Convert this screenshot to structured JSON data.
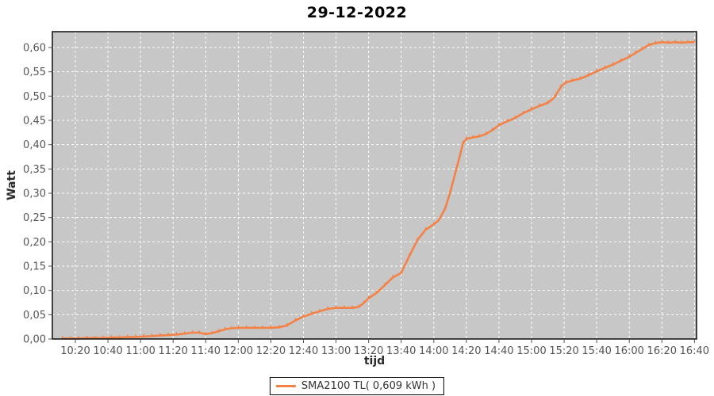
{
  "colors": {
    "background": "#ffffff",
    "plot_bg": "#c7c7c7",
    "grid": "#ffffff",
    "series": "#f48246",
    "border": "#1a1a1a",
    "tick_mark": "#555555",
    "tick_text": "#555555",
    "axis_text": "#2b2b2b"
  },
  "chart_data": {
    "type": "line",
    "title": "29-12-2022",
    "xlabel": "tijd",
    "ylabel": "Watt",
    "grid": "white dashed gridlines on gray plot background",
    "legend": {
      "label": "SMA2100 TL( 0,609 kWh )",
      "position": "bottom-center"
    },
    "x_ticks": [
      "10:20",
      "10:40",
      "11:00",
      "11:20",
      "11:40",
      "12:00",
      "12:20",
      "12:40",
      "13:00",
      "13:20",
      "13:40",
      "14:00",
      "14:20",
      "14:40",
      "15:00",
      "15:20",
      "15:40",
      "16:00",
      "16:20",
      "16:40"
    ],
    "y_ticks": [
      "0,00",
      "0,05",
      "0,10",
      "0,15",
      "0,20",
      "0,25",
      "0,30",
      "0,35",
      "0,40",
      "0,45",
      "0,50",
      "0,55",
      "0,60"
    ],
    "ylim": [
      0,
      0.632
    ],
    "xlim": [
      "10:06",
      "16:41"
    ],
    "series": [
      {
        "name": "SMA2100 TL( 0,609 kWh )",
        "color": "#f48246",
        "points": [
          [
            "10:12",
            0.001
          ],
          [
            "10:17",
            0.001
          ],
          [
            "10:22",
            0.001
          ],
          [
            "10:27",
            0.002
          ],
          [
            "10:32",
            0.002
          ],
          [
            "10:37",
            0.002
          ],
          [
            "10:42",
            0.003
          ],
          [
            "10:47",
            0.003
          ],
          [
            "10:52",
            0.004
          ],
          [
            "10:57",
            0.004
          ],
          [
            "11:02",
            0.005
          ],
          [
            "11:07",
            0.006
          ],
          [
            "11:12",
            0.007
          ],
          [
            "11:17",
            0.008
          ],
          [
            "11:22",
            0.009
          ],
          [
            "11:27",
            0.011
          ],
          [
            "11:32",
            0.013
          ],
          [
            "11:36",
            0.013
          ],
          [
            "11:40",
            0.01
          ],
          [
            "11:44",
            0.012
          ],
          [
            "11:48",
            0.016
          ],
          [
            "11:52",
            0.02
          ],
          [
            "11:56",
            0.022
          ],
          [
            "12:00",
            0.023
          ],
          [
            "12:05",
            0.023
          ],
          [
            "12:10",
            0.023
          ],
          [
            "12:15",
            0.023
          ],
          [
            "12:20",
            0.023
          ],
          [
            "12:25",
            0.024
          ],
          [
            "12:30",
            0.028
          ],
          [
            "12:35",
            0.038
          ],
          [
            "12:40",
            0.046
          ],
          [
            "12:45",
            0.052
          ],
          [
            "12:50",
            0.057
          ],
          [
            "12:55",
            0.062
          ],
          [
            "13:00",
            0.064
          ],
          [
            "13:05",
            0.064
          ],
          [
            "13:10",
            0.064
          ],
          [
            "13:14",
            0.066
          ],
          [
            "13:17",
            0.074
          ],
          [
            "13:20",
            0.084
          ],
          [
            "13:25",
            0.095
          ],
          [
            "13:30",
            0.111
          ],
          [
            "13:35",
            0.127
          ],
          [
            "13:40",
            0.136
          ],
          [
            "13:45",
            0.171
          ],
          [
            "13:50",
            0.204
          ],
          [
            "13:55",
            0.225
          ],
          [
            "14:00",
            0.236
          ],
          [
            "14:03",
            0.244
          ],
          [
            "14:07",
            0.269
          ],
          [
            "14:10",
            0.301
          ],
          [
            "14:13",
            0.339
          ],
          [
            "14:16",
            0.377
          ],
          [
            "14:18",
            0.403
          ],
          [
            "14:20",
            0.412
          ],
          [
            "14:24",
            0.415
          ],
          [
            "14:28",
            0.417
          ],
          [
            "14:32",
            0.422
          ],
          [
            "14:36",
            0.43
          ],
          [
            "14:40",
            0.44
          ],
          [
            "14:45",
            0.448
          ],
          [
            "14:50",
            0.455
          ],
          [
            "14:55",
            0.465
          ],
          [
            "15:00",
            0.473
          ],
          [
            "15:05",
            0.48
          ],
          [
            "15:10",
            0.486
          ],
          [
            "15:14",
            0.497
          ],
          [
            "15:18",
            0.519
          ],
          [
            "15:21",
            0.528
          ],
          [
            "15:25",
            0.532
          ],
          [
            "15:30",
            0.536
          ],
          [
            "15:35",
            0.543
          ],
          [
            "15:40",
            0.551
          ],
          [
            "15:45",
            0.558
          ],
          [
            "15:50",
            0.565
          ],
          [
            "15:55",
            0.573
          ],
          [
            "16:00",
            0.581
          ],
          [
            "16:04",
            0.589
          ],
          [
            "16:08",
            0.597
          ],
          [
            "16:12",
            0.605
          ],
          [
            "16:16",
            0.609
          ],
          [
            "16:20",
            0.611
          ],
          [
            "16:24",
            0.61
          ],
          [
            "16:28",
            0.611
          ],
          [
            "16:32",
            0.61
          ],
          [
            "16:36",
            0.611
          ],
          [
            "16:40",
            0.611
          ]
        ]
      }
    ]
  }
}
